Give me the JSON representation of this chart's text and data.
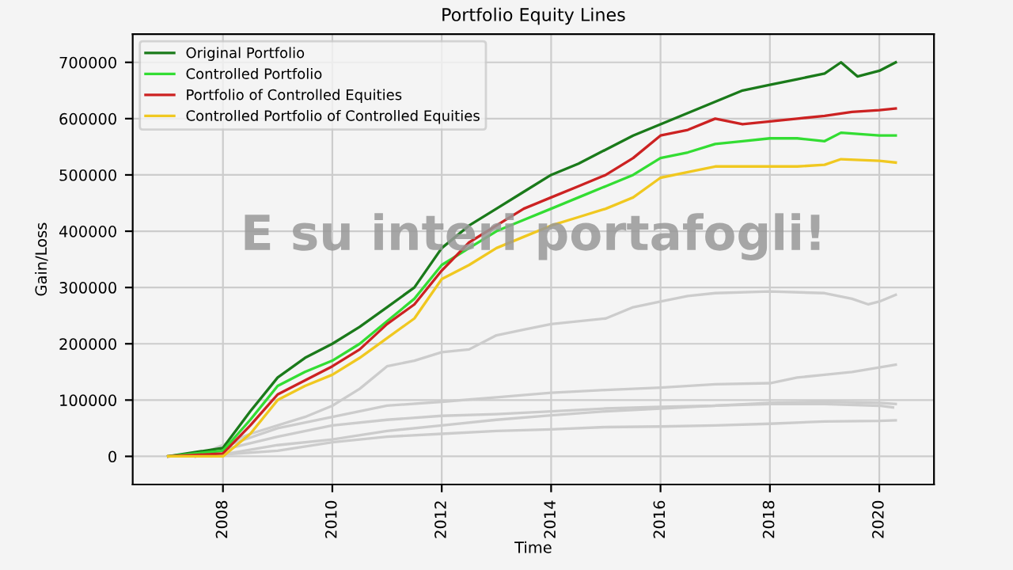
{
  "chart_data": {
    "type": "line",
    "title": "Portfolio Equity Lines",
    "xlabel": "Time",
    "ylabel": "Gain/Loss",
    "annotations": [
      "E su interi portafogli!"
    ],
    "xlim": [
      2006.35,
      2021.0
    ],
    "xticks": [
      2008,
      2010,
      2012,
      2014,
      2016,
      2018,
      2020
    ],
    "ylim": [
      -50000,
      750000
    ],
    "yticks": [
      0,
      100000,
      200000,
      300000,
      400000,
      500000,
      600000,
      700000
    ],
    "grid": true,
    "legend": "top left",
    "series": [
      {
        "color": "#cccccc",
        "x": [
          2007.5,
          2008.5,
          2009.5,
          2010,
          2010.5,
          2011,
          2011.5,
          2012,
          2012.5,
          2013,
          2013.5,
          2014,
          2015,
          2015.5,
          2016,
          2016.5,
          2017,
          2018,
          2019,
          2019.5,
          2019.8,
          2020,
          2020.3
        ],
        "values": [
          0,
          40000,
          70000,
          90000,
          120000,
          160000,
          170000,
          185000,
          190000,
          215000,
          225000,
          235000,
          245000,
          265000,
          275000,
          285000,
          290000,
          293000,
          290000,
          280000,
          270000,
          275000,
          287000
        ]
      },
      {
        "color": "#cccccc",
        "x": [
          2007.5,
          2009,
          2010,
          2011,
          2012,
          2013,
          2014,
          2015,
          2016,
          2017,
          2018,
          2018.5,
          2019,
          2019.5,
          2020,
          2020.3
        ],
        "values": [
          0,
          50000,
          70000,
          90000,
          97000,
          105000,
          113000,
          118000,
          122000,
          128000,
          130000,
          140000,
          145000,
          150000,
          158000,
          163000
        ]
      },
      {
        "color": "#cccccc",
        "x": [
          2007.5,
          2009,
          2010,
          2011,
          2012,
          2013,
          2014,
          2015,
          2016,
          2017,
          2018,
          2019,
          2020,
          2020.3
        ],
        "values": [
          0,
          35000,
          55000,
          65000,
          72000,
          75000,
          80000,
          85000,
          88000,
          90000,
          95000,
          97000,
          95000,
          93000
        ]
      },
      {
        "color": "#cccccc",
        "x": [
          2007.8,
          2009,
          2010,
          2011,
          2012,
          2013,
          2014,
          2015,
          2016,
          2017,
          2018,
          2019,
          2020,
          2020.25
        ],
        "values": [
          0,
          20000,
          30000,
          45000,
          55000,
          65000,
          73000,
          80000,
          85000,
          90000,
          93000,
          93000,
          90000,
          87000
        ]
      },
      {
        "color": "#cccccc",
        "x": [
          2007.5,
          2009,
          2010,
          2011,
          2012,
          2013,
          2014,
          2015,
          2016,
          2017,
          2018,
          2019,
          2020,
          2020.3
        ],
        "values": [
          0,
          10000,
          25000,
          35000,
          40000,
          45000,
          48000,
          52000,
          53000,
          55000,
          58000,
          62000,
          63000,
          64000
        ]
      },
      {
        "name": "Original Portfolio",
        "color": "#1a7a1a",
        "x": [
          2007,
          2008,
          2008.5,
          2009,
          2009.5,
          2010,
          2010.5,
          2011,
          2011.5,
          2012,
          2012.5,
          2013,
          2013.5,
          2014,
          2014.5,
          2015,
          2015.5,
          2016,
          2016.5,
          2017,
          2017.5,
          2018,
          2018.5,
          2019,
          2019.3,
          2019.6,
          2020,
          2020.3
        ],
        "values": [
          0,
          15000,
          80000,
          140000,
          175000,
          200000,
          230000,
          265000,
          300000,
          370000,
          410000,
          440000,
          470000,
          500000,
          520000,
          545000,
          570000,
          590000,
          610000,
          630000,
          650000,
          660000,
          670000,
          680000,
          700000,
          675000,
          685000,
          700000
        ]
      },
      {
        "name": "Controlled Portfolio",
        "color": "#33dd33",
        "x": [
          2007,
          2008,
          2008.5,
          2009,
          2009.5,
          2010,
          2010.5,
          2011,
          2011.5,
          2012,
          2012.5,
          2013,
          2013.5,
          2014,
          2014.5,
          2015,
          2015.5,
          2016,
          2016.5,
          2017,
          2017.5,
          2018,
          2018.5,
          2019,
          2019.3,
          2020,
          2020.3
        ],
        "values": [
          0,
          10000,
          65000,
          125000,
          150000,
          170000,
          200000,
          240000,
          280000,
          340000,
          370000,
          400000,
          420000,
          440000,
          460000,
          480000,
          500000,
          530000,
          540000,
          555000,
          560000,
          565000,
          565000,
          560000,
          575000,
          570000,
          570000
        ]
      },
      {
        "name": "Portfolio of Controlled Equities",
        "color": "#cc2222",
        "x": [
          2007,
          2008,
          2008.5,
          2009,
          2009.5,
          2010,
          2010.5,
          2011,
          2011.5,
          2012,
          2012.5,
          2013,
          2013.5,
          2014,
          2014.5,
          2015,
          2015.5,
          2016,
          2016.5,
          2017,
          2017.5,
          2018,
          2018.5,
          2019,
          2019.5,
          2020,
          2020.3
        ],
        "values": [
          0,
          5000,
          55000,
          110000,
          135000,
          160000,
          190000,
          235000,
          270000,
          330000,
          380000,
          410000,
          440000,
          460000,
          480000,
          500000,
          530000,
          570000,
          580000,
          600000,
          590000,
          595000,
          600000,
          605000,
          612000,
          615000,
          618000
        ]
      },
      {
        "name": "Controlled Portfolio of Controlled Equities",
        "color": "#f0c820",
        "x": [
          2007,
          2008,
          2008.5,
          2009,
          2009.5,
          2010,
          2010.5,
          2011,
          2011.5,
          2012,
          2012.5,
          2013,
          2013.5,
          2014,
          2014.5,
          2015,
          2015.5,
          2016,
          2016.5,
          2017,
          2017.5,
          2018,
          2018.5,
          2019,
          2019.3,
          2020,
          2020.3
        ],
        "values": [
          0,
          0,
          40000,
          100000,
          125000,
          145000,
          175000,
          210000,
          245000,
          315000,
          340000,
          370000,
          390000,
          410000,
          425000,
          440000,
          460000,
          495000,
          505000,
          515000,
          515000,
          515000,
          515000,
          518000,
          528000,
          525000,
          522000
        ]
      }
    ]
  }
}
